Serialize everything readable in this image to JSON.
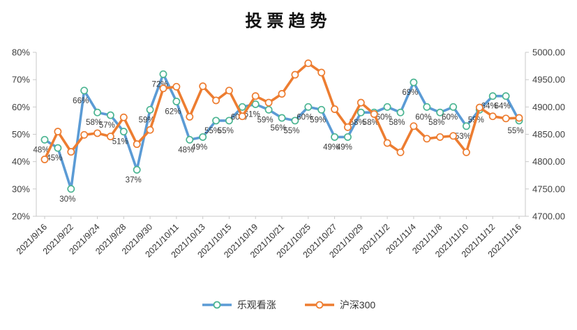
{
  "chart_data": {
    "type": "line",
    "title": "投票趋势",
    "x": [
      "2021/9/16",
      "2021/9/17",
      "2021/9/22",
      "2021/9/23",
      "2021/9/24",
      "2021/9/27",
      "2021/9/28",
      "2021/9/29",
      "2021/9/30",
      "2021/10/8",
      "2021/10/11",
      "2021/10/12",
      "2021/10/13",
      "2021/10/14",
      "2021/10/15",
      "2021/10/18",
      "2021/10/19",
      "2021/10/20",
      "2021/10/21",
      "2021/10/22",
      "2021/10/25",
      "2021/10/26",
      "2021/10/27",
      "2021/10/28",
      "2021/10/29",
      "2021/11/1",
      "2021/11/2",
      "2021/11/3",
      "2021/11/4",
      "2021/11/5",
      "2021/11/8",
      "2021/11/9",
      "2021/11/10",
      "2021/11/11",
      "2021/11/12",
      "2021/11/15",
      "2021/11/16"
    ],
    "x_tick_labels": [
      "2021/9/16",
      "2021/9/22",
      "2021/9/24",
      "2021/9/28",
      "2021/9/30",
      "2021/10/11",
      "2021/10/13",
      "2021/10/15",
      "2021/10/19",
      "2021/10/21",
      "2021/10/25",
      "2021/10/27",
      "2021/10/29",
      "2021/11/2",
      "2021/11/4",
      "2021/11/8",
      "2021/11/10",
      "2021/11/12",
      "2021/11/16"
    ],
    "x_tick_every": 2,
    "series": [
      {
        "name": "乐观看涨",
        "axis": "left",
        "color": "#5B9BD5",
        "marker_color": "#4CB592",
        "values": [
          48,
          45,
          30,
          66,
          58,
          57,
          51,
          37,
          59,
          72,
          62,
          48,
          49,
          55,
          55,
          60,
          61,
          59,
          56,
          55,
          60,
          59,
          49,
          49,
          58,
          58,
          60,
          58,
          69,
          60,
          58,
          60,
          53,
          59,
          64,
          64,
          55
        ],
        "label_suffix": "%",
        "show_labels": true
      },
      {
        "name": "沪深300",
        "axis": "right",
        "color": "#ED7D31",
        "marker_color": "#ED7D31",
        "values": [
          4804,
          4855,
          4818,
          4849,
          4852,
          4846,
          4881,
          4832,
          4858,
          4934,
          4937,
          4882,
          4938,
          4912,
          4930,
          4883,
          4920,
          4908,
          4924,
          4959,
          4980,
          4963,
          4896,
          4863,
          4908,
          4887,
          4834,
          4817,
          4865,
          4842,
          4845,
          4847,
          4817,
          4899,
          4883,
          4879,
          4880
        ],
        "label_suffix": "",
        "show_labels": false
      }
    ],
    "left_axis": {
      "min": 20,
      "max": 80,
      "ticks": [
        "80%",
        "70%",
        "60%",
        "50%",
        "40%",
        "30%",
        "20%"
      ]
    },
    "right_axis": {
      "min": 4700,
      "max": 5000,
      "ticks": [
        "5000.00",
        "4950.00",
        "4900.00",
        "4850.00",
        "4800.00",
        "4750.00",
        "4700.00"
      ]
    },
    "legend_position": "bottom",
    "grid": false
  },
  "style": {
    "axis_line_color": "#C9C9C9",
    "tick_text_color": "#404040",
    "data_label_color": "#3A3A3A"
  }
}
